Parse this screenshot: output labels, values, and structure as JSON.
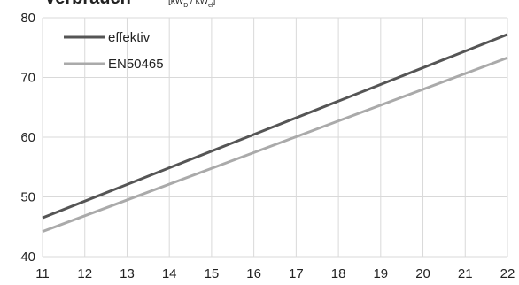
{
  "chart_data": {
    "type": "line",
    "title": "Verbrauch",
    "unit_label": [
      "[kW",
      "D",
      " / kW",
      "el",
      "]"
    ],
    "x": [
      11,
      22
    ],
    "xlim": [
      11,
      22
    ],
    "xticks": [
      11,
      12,
      13,
      14,
      15,
      16,
      17,
      18,
      19,
      20,
      21,
      22
    ],
    "ylim": [
      40,
      80
    ],
    "yticks": [
      40,
      50,
      60,
      70,
      80
    ],
    "grid": true,
    "legend": "upper-left",
    "series": [
      {
        "name": "effektiv",
        "color": "#555555",
        "values": [
          46.5,
          77.2
        ]
      },
      {
        "name": "EN50465",
        "color": "#aaaaaa",
        "values": [
          44.2,
          73.3
        ]
      }
    ]
  }
}
